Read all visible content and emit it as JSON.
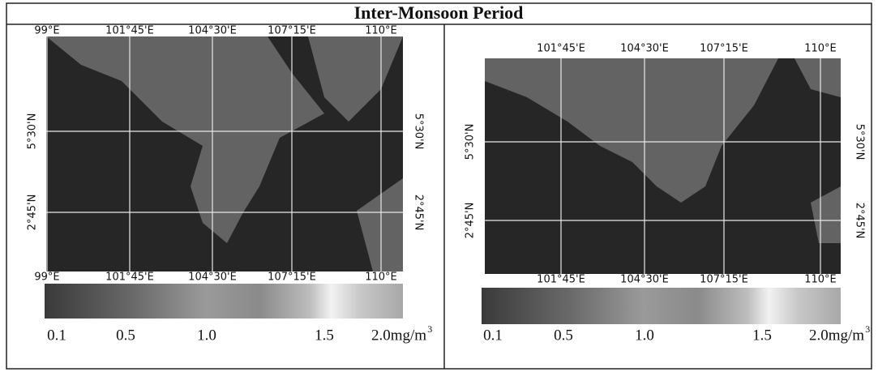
{
  "title": "Inter-Monsoon Period",
  "panels": [
    {
      "top_labels": [
        "99°E",
        "101°45'E",
        "104°30'E",
        "107°15'E",
        "110°E"
      ],
      "bottom_labels": [
        "99°E",
        "101°45'E",
        "104°30'E",
        "107°15'E",
        "110°E"
      ],
      "left_labels": [
        "5°30'N",
        "2°45'N"
      ],
      "right_labels": [
        "5°30'N",
        "2°45'N"
      ],
      "colorbar": {
        "ticks": [
          "0.1",
          "0.5",
          "1.0",
          "1.5"
        ],
        "end_label": "2.0mg/m",
        "end_superscript": "3"
      }
    },
    {
      "top_labels": [
        "101°45'E",
        "104°30'E",
        "107°15'E",
        "110°E"
      ],
      "bottom_labels": [
        "101°45'E",
        "104°30'E",
        "107°15'E",
        "110°E"
      ],
      "left_labels": [
        "5°30'N",
        "2°45'N"
      ],
      "right_labels": [
        "5°30'N",
        "2°45'N"
      ],
      "colorbar": {
        "ticks": [
          "0.1",
          "0.5",
          "1.0",
          "1.5"
        ],
        "end_label": "2.0mg/m",
        "end_superscript": "3"
      }
    }
  ]
}
